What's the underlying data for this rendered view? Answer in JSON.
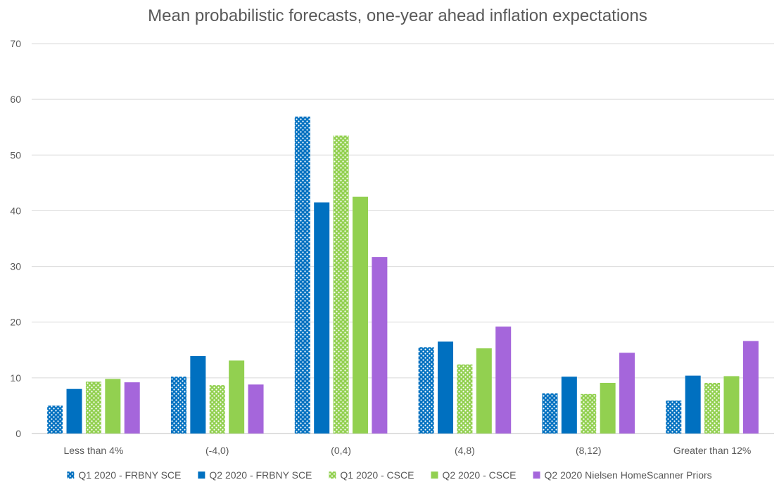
{
  "chart_data": {
    "type": "bar",
    "title": "Mean probabilistic forecasts, one-year ahead inflation expectations",
    "xlabel": "",
    "ylabel": "",
    "ylim": [
      0,
      70
    ],
    "yticks": [
      0,
      10,
      20,
      30,
      40,
      50,
      60,
      70
    ],
    "grid": true,
    "legend_position": "bottom",
    "categories": [
      "Less than 4%",
      "(-4,0)",
      "(0,4)",
      "(4,8)",
      "(8,12)",
      "Greater than 12%"
    ],
    "series": [
      {
        "name": "Q1 2020 - FRBNY SCE",
        "color": "#0070C0",
        "pattern": "dotted",
        "values": [
          5.0,
          10.2,
          56.9,
          15.5,
          7.2,
          5.9
        ]
      },
      {
        "name": "Q2 2020 - FRBNY SCE",
        "color": "#0070C0",
        "pattern": "solid",
        "values": [
          8.0,
          13.9,
          41.5,
          16.5,
          10.2,
          10.4
        ]
      },
      {
        "name": "Q1 2020 - CSCE",
        "color": "#92D050",
        "pattern": "dotted",
        "values": [
          9.3,
          8.7,
          53.5,
          12.4,
          7.1,
          9.1
        ]
      },
      {
        "name": "Q2 2020 - CSCE",
        "color": "#92D050",
        "pattern": "solid",
        "values": [
          9.8,
          13.1,
          42.5,
          15.3,
          9.1,
          10.3
        ]
      },
      {
        "name": "Q2 2020 Nielsen HomeScanner Priors",
        "color": "#A566DB",
        "pattern": "solid",
        "values": [
          9.2,
          8.8,
          31.7,
          19.2,
          14.5,
          16.6
        ]
      }
    ]
  }
}
